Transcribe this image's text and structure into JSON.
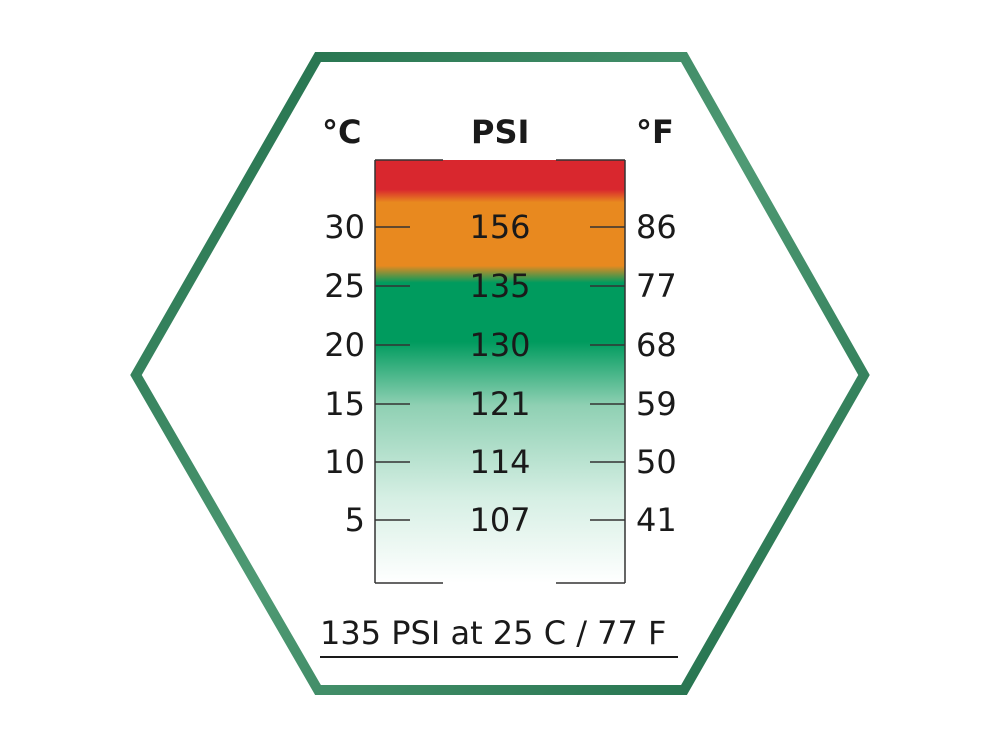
{
  "headers": {
    "celsius": "°C",
    "psi": "PSI",
    "fahrenheit": "°F"
  },
  "rows": [
    {
      "c": "30",
      "psi": "156",
      "f": "86"
    },
    {
      "c": "25",
      "psi": "135",
      "f": "77"
    },
    {
      "c": "20",
      "psi": "130",
      "f": "68"
    },
    {
      "c": "15",
      "psi": "121",
      "f": "59"
    },
    {
      "c": "10",
      "psi": "114",
      "f": "50"
    },
    {
      "c": "5",
      "psi": "107",
      "f": "41"
    }
  ],
  "footer": "135 PSI at 25 C / 77 F",
  "colors": {
    "frame": "#1d6b47",
    "red": "#d9272e",
    "orange": "#e8891f",
    "green": "#009b5e"
  }
}
